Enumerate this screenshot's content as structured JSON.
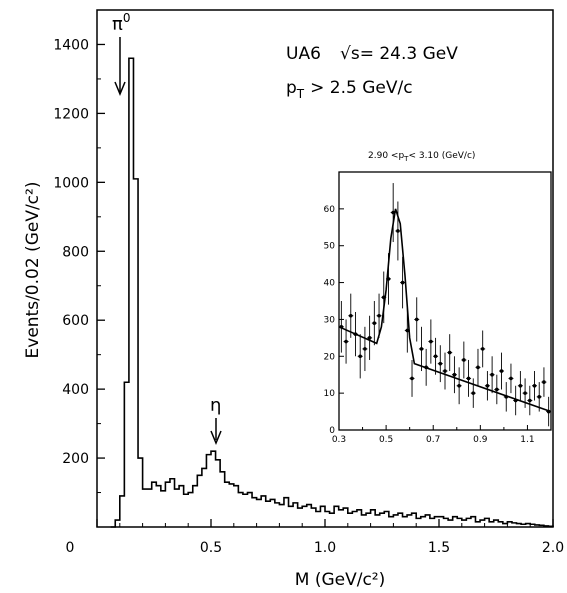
{
  "chart_data": [
    {
      "type": "histogram",
      "xlabel": "M (GeV/c²)",
      "ylabel": "Events/0.02 (GeV/c²)",
      "xlim": [
        0,
        2.0
      ],
      "ylim": [
        0,
        1500
      ],
      "xticks": [
        "0",
        "0.5",
        "1.0",
        "1.5",
        "2.0"
      ],
      "yticks": [
        "200",
        "400",
        "600",
        "800",
        "1000",
        "1200",
        "1400"
      ],
      "experiment": "UA6",
      "sqrt_s": "√s= 24.3 GeV",
      "pt_cut": "p",
      "pt_sub": "T",
      "pt_cut_value": "> 2.5 GeV/c",
      "annotations": [
        {
          "label": "π",
          "sup": "0",
          "x": 0.17
        },
        {
          "label": "η",
          "x": 0.55
        }
      ],
      "bin_width": 0.02,
      "x": [
        0.06,
        0.08,
        0.1,
        0.12,
        0.14,
        0.16,
        0.18,
        0.2,
        0.22,
        0.24,
        0.26,
        0.28,
        0.3,
        0.32,
        0.34,
        0.36,
        0.38,
        0.4,
        0.42,
        0.44,
        0.46,
        0.48,
        0.5,
        0.52,
        0.54,
        0.56,
        0.58,
        0.6,
        0.62,
        0.64,
        0.66,
        0.68,
        0.7,
        0.72,
        0.74,
        0.76,
        0.78,
        0.8,
        0.82,
        0.84,
        0.86,
        0.88,
        0.9,
        0.92,
        0.94,
        0.96,
        0.98,
        1.0,
        1.02,
        1.04,
        1.06,
        1.08,
        1.1,
        1.12,
        1.14,
        1.16,
        1.18,
        1.2,
        1.22,
        1.24,
        1.26,
        1.28,
        1.3,
        1.32,
        1.34,
        1.36,
        1.38,
        1.4,
        1.42,
        1.44,
        1.46,
        1.48,
        1.5,
        1.52,
        1.54,
        1.56,
        1.58,
        1.6,
        1.62,
        1.64,
        1.66,
        1.68,
        1.7,
        1.72,
        1.74,
        1.76,
        1.78,
        1.8,
        1.82,
        1.84,
        1.86,
        1.88,
        1.9,
        1.92,
        1.94,
        1.96,
        1.98
      ],
      "values": [
        0,
        20,
        90,
        420,
        1360,
        1010,
        200,
        110,
        110,
        130,
        120,
        105,
        130,
        140,
        110,
        120,
        95,
        100,
        120,
        150,
        170,
        210,
        220,
        195,
        160,
        130,
        125,
        120,
        100,
        95,
        100,
        85,
        80,
        90,
        75,
        80,
        70,
        65,
        85,
        60,
        70,
        55,
        60,
        65,
        55,
        45,
        60,
        45,
        40,
        60,
        50,
        55,
        40,
        45,
        50,
        35,
        40,
        50,
        35,
        40,
        45,
        30,
        35,
        40,
        30,
        35,
        40,
        25,
        30,
        35,
        25,
        30,
        30,
        25,
        20,
        30,
        25,
        20,
        25,
        30,
        15,
        20,
        25,
        15,
        20,
        15,
        10,
        15,
        12,
        10,
        8,
        10,
        8,
        6,
        5,
        3,
        2
      ]
    },
    {
      "type": "scatter",
      "title": "2.90 <p",
      "title_sub": "T",
      "title_rest": "< 3.10 (GeV/c)",
      "xlim": [
        0.3,
        1.2
      ],
      "ylim": [
        0,
        70
      ],
      "xticks": [
        "0.3",
        "0.5",
        "0.7",
        "0.9",
        "1.1"
      ],
      "yticks": [
        "0",
        "10",
        "20",
        "30",
        "40",
        "50",
        "60"
      ],
      "points": [
        {
          "x": 0.31,
          "y": 28,
          "e": 7
        },
        {
          "x": 0.33,
          "y": 24,
          "e": 6
        },
        {
          "x": 0.35,
          "y": 31,
          "e": 6
        },
        {
          "x": 0.37,
          "y": 26,
          "e": 6
        },
        {
          "x": 0.39,
          "y": 20,
          "e": 6
        },
        {
          "x": 0.41,
          "y": 22,
          "e": 6
        },
        {
          "x": 0.43,
          "y": 25,
          "e": 6
        },
        {
          "x": 0.45,
          "y": 29,
          "e": 6
        },
        {
          "x": 0.47,
          "y": 31,
          "e": 6
        },
        {
          "x": 0.49,
          "y": 36,
          "e": 7
        },
        {
          "x": 0.51,
          "y": 41,
          "e": 7
        },
        {
          "x": 0.53,
          "y": 59,
          "e": 8
        },
        {
          "x": 0.55,
          "y": 54,
          "e": 8
        },
        {
          "x": 0.57,
          "y": 40,
          "e": 7
        },
        {
          "x": 0.59,
          "y": 27,
          "e": 6
        },
        {
          "x": 0.61,
          "y": 14,
          "e": 5
        },
        {
          "x": 0.63,
          "y": 30,
          "e": 6
        },
        {
          "x": 0.65,
          "y": 22,
          "e": 6
        },
        {
          "x": 0.67,
          "y": 17,
          "e": 5
        },
        {
          "x": 0.69,
          "y": 24,
          "e": 6
        },
        {
          "x": 0.71,
          "y": 20,
          "e": 5
        },
        {
          "x": 0.73,
          "y": 18,
          "e": 5
        },
        {
          "x": 0.75,
          "y": 16,
          "e": 5
        },
        {
          "x": 0.77,
          "y": 21,
          "e": 5
        },
        {
          "x": 0.79,
          "y": 15,
          "e": 5
        },
        {
          "x": 0.81,
          "y": 12,
          "e": 5
        },
        {
          "x": 0.83,
          "y": 19,
          "e": 5
        },
        {
          "x": 0.85,
          "y": 14,
          "e": 5
        },
        {
          "x": 0.87,
          "y": 10,
          "e": 4
        },
        {
          "x": 0.89,
          "y": 17,
          "e": 5
        },
        {
          "x": 0.91,
          "y": 22,
          "e": 5
        },
        {
          "x": 0.93,
          "y": 12,
          "e": 4
        },
        {
          "x": 0.95,
          "y": 15,
          "e": 5
        },
        {
          "x": 0.97,
          "y": 11,
          "e": 4
        },
        {
          "x": 0.99,
          "y": 16,
          "e": 5
        },
        {
          "x": 1.01,
          "y": 9,
          "e": 4
        },
        {
          "x": 1.03,
          "y": 14,
          "e": 4
        },
        {
          "x": 1.05,
          "y": 8,
          "e": 4
        },
        {
          "x": 1.07,
          "y": 12,
          "e": 4
        },
        {
          "x": 1.09,
          "y": 10,
          "e": 4
        },
        {
          "x": 1.11,
          "y": 8,
          "e": 4
        },
        {
          "x": 1.13,
          "y": 12,
          "e": 4
        },
        {
          "x": 1.15,
          "y": 9,
          "e": 4
        },
        {
          "x": 1.17,
          "y": 13,
          "e": 4
        },
        {
          "x": 1.19,
          "y": 5,
          "e": 4
        }
      ],
      "fit": [
        [
          0.3,
          28
        ],
        [
          0.46,
          23.5
        ],
        [
          0.48,
          28
        ],
        [
          0.5,
          38
        ],
        [
          0.52,
          52
        ],
        [
          0.54,
          60
        ],
        [
          0.56,
          56
        ],
        [
          0.58,
          42
        ],
        [
          0.6,
          25
        ],
        [
          0.62,
          18
        ],
        [
          1.2,
          5
        ]
      ]
    }
  ]
}
